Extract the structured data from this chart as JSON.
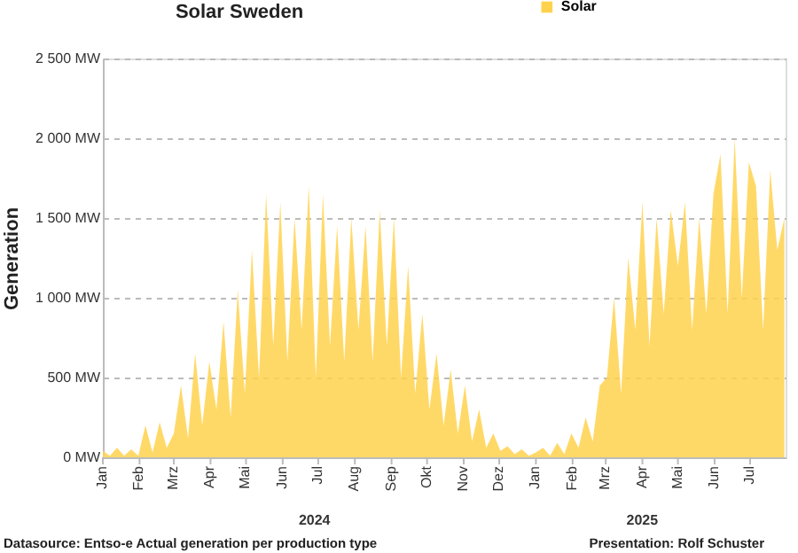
{
  "chart_data": {
    "type": "area",
    "title": "Solar Sweden",
    "ylabel": "Generation",
    "x": [
      "2024-01-01",
      "2024-01-07",
      "2024-01-13",
      "2024-01-19",
      "2024-01-25",
      "2024-01-31",
      "2024-02-06",
      "2024-02-12",
      "2024-02-18",
      "2024-02-24",
      "2024-03-01",
      "2024-03-07",
      "2024-03-13",
      "2024-03-19",
      "2024-03-25",
      "2024-03-31",
      "2024-04-06",
      "2024-04-12",
      "2024-04-18",
      "2024-04-24",
      "2024-04-30",
      "2024-05-06",
      "2024-05-12",
      "2024-05-18",
      "2024-05-24",
      "2024-05-30",
      "2024-06-05",
      "2024-06-11",
      "2024-06-17",
      "2024-06-23",
      "2024-06-29",
      "2024-07-05",
      "2024-07-11",
      "2024-07-17",
      "2024-07-23",
      "2024-07-29",
      "2024-08-04",
      "2024-08-10",
      "2024-08-16",
      "2024-08-22",
      "2024-08-28",
      "2024-09-03",
      "2024-09-09",
      "2024-09-15",
      "2024-09-21",
      "2024-09-27",
      "2024-10-03",
      "2024-10-09",
      "2024-10-15",
      "2024-10-21",
      "2024-10-27",
      "2024-11-02",
      "2024-11-08",
      "2024-11-14",
      "2024-11-20",
      "2024-11-26",
      "2024-12-02",
      "2024-12-08",
      "2024-12-14",
      "2024-12-20",
      "2024-12-26",
      "2025-01-01",
      "2025-01-07",
      "2025-01-13",
      "2025-01-19",
      "2025-01-25",
      "2025-01-31",
      "2025-02-06",
      "2025-02-12",
      "2025-02-18",
      "2025-02-24",
      "2025-03-02",
      "2025-03-08",
      "2025-03-14",
      "2025-03-20",
      "2025-03-26",
      "2025-04-01",
      "2025-04-07",
      "2025-04-13",
      "2025-04-19",
      "2025-04-25",
      "2025-05-01",
      "2025-05-07",
      "2025-05-13",
      "2025-05-19",
      "2025-05-25",
      "2025-05-31",
      "2025-06-06",
      "2025-06-12",
      "2025-06-18",
      "2025-06-24",
      "2025-06-30",
      "2025-07-06",
      "2025-07-12",
      "2025-07-18",
      "2025-07-24",
      "2025-07-30"
    ],
    "series": [
      {
        "name": "Solar",
        "color": "#ffd24d",
        "values": [
          40,
          10,
          60,
          10,
          50,
          10,
          200,
          30,
          220,
          60,
          150,
          450,
          120,
          650,
          200,
          600,
          300,
          850,
          250,
          1050,
          400,
          1300,
          500,
          1650,
          700,
          1600,
          600,
          1500,
          800,
          1700,
          500,
          1650,
          700,
          1450,
          600,
          1500,
          800,
          1450,
          600,
          1550,
          700,
          1500,
          500,
          1200,
          400,
          900,
          300,
          650,
          200,
          550,
          150,
          450,
          100,
          300,
          60,
          150,
          40,
          70,
          20,
          50,
          10,
          30,
          60,
          10,
          90,
          20,
          150,
          60,
          250,
          100,
          450,
          500,
          1000,
          400,
          1250,
          800,
          1600,
          700,
          1500,
          900,
          1550,
          1200,
          1600,
          800,
          1500,
          900,
          1650,
          1900,
          900,
          2000,
          1000,
          1850,
          1700,
          800,
          1800,
          1300,
          1500
        ]
      }
    ],
    "xlim": [
      "2024-01-01",
      "2025-07-31"
    ],
    "xticks": [
      {
        "value": "2024-01-01",
        "label": "Jan"
      },
      {
        "value": "2024-02-01",
        "label": "Feb"
      },
      {
        "value": "2024-03-01",
        "label": "Mrz"
      },
      {
        "value": "2024-04-01",
        "label": "Apr"
      },
      {
        "value": "2024-05-01",
        "label": "Mai"
      },
      {
        "value": "2024-06-01",
        "label": "Jun"
      },
      {
        "value": "2024-07-01",
        "label": "Jul"
      },
      {
        "value": "2024-08-01",
        "label": "Aug"
      },
      {
        "value": "2024-09-01",
        "label": "Sep"
      },
      {
        "value": "2024-10-01",
        "label": "Okt"
      },
      {
        "value": "2024-11-01",
        "label": "Nov"
      },
      {
        "value": "2024-12-01",
        "label": "Dez"
      },
      {
        "value": "2025-01-01",
        "label": "Jan"
      },
      {
        "value": "2025-02-01",
        "label": "Feb"
      },
      {
        "value": "2025-03-01",
        "label": "Mrz"
      },
      {
        "value": "2025-04-01",
        "label": "Apr"
      },
      {
        "value": "2025-05-01",
        "label": "Mai"
      },
      {
        "value": "2025-06-01",
        "label": "Jun"
      },
      {
        "value": "2025-07-01",
        "label": "Jul"
      }
    ],
    "ylim": [
      0,
      2500
    ],
    "yticks": [
      {
        "value": 0,
        "label": "0 MW"
      },
      {
        "value": 500,
        "label": "500 MW"
      },
      {
        "value": 1000,
        "label": "1 000 MW"
      },
      {
        "value": 1500,
        "label": "1 500 MW"
      },
      {
        "value": 2000,
        "label": "2 000 MW"
      },
      {
        "value": 2500,
        "label": "2 500 MW"
      }
    ],
    "grid": "y",
    "legend": "top right",
    "annotations": [
      "2024",
      "2025",
      "Datasource: Entso-e  Actual generation per production type",
      "Presentation: Rolf Schuster"
    ]
  }
}
